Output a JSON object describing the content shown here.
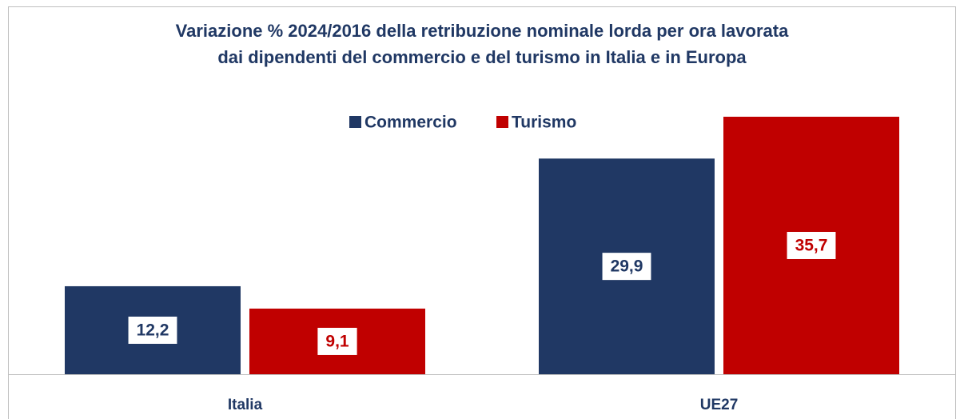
{
  "chart_data": {
    "type": "bar",
    "title": [
      "Variazione % 2024/2016 della retribuzione nominale lorda per ora lavorata",
      "dai dipendenti del commercio e del turismo in Italia e in Europa"
    ],
    "categories": [
      "Italia",
      "UE27"
    ],
    "series": [
      {
        "name": "Commercio",
        "color": "#203864",
        "values": [
          12.2,
          29.9
        ],
        "value_labels": [
          "12,2",
          "29,9"
        ]
      },
      {
        "name": "Turismo",
        "color": "#c00000",
        "values": [
          9.1,
          35.7
        ],
        "value_labels": [
          "9,1",
          "35,7"
        ]
      }
    ],
    "legend": "top"
  }
}
